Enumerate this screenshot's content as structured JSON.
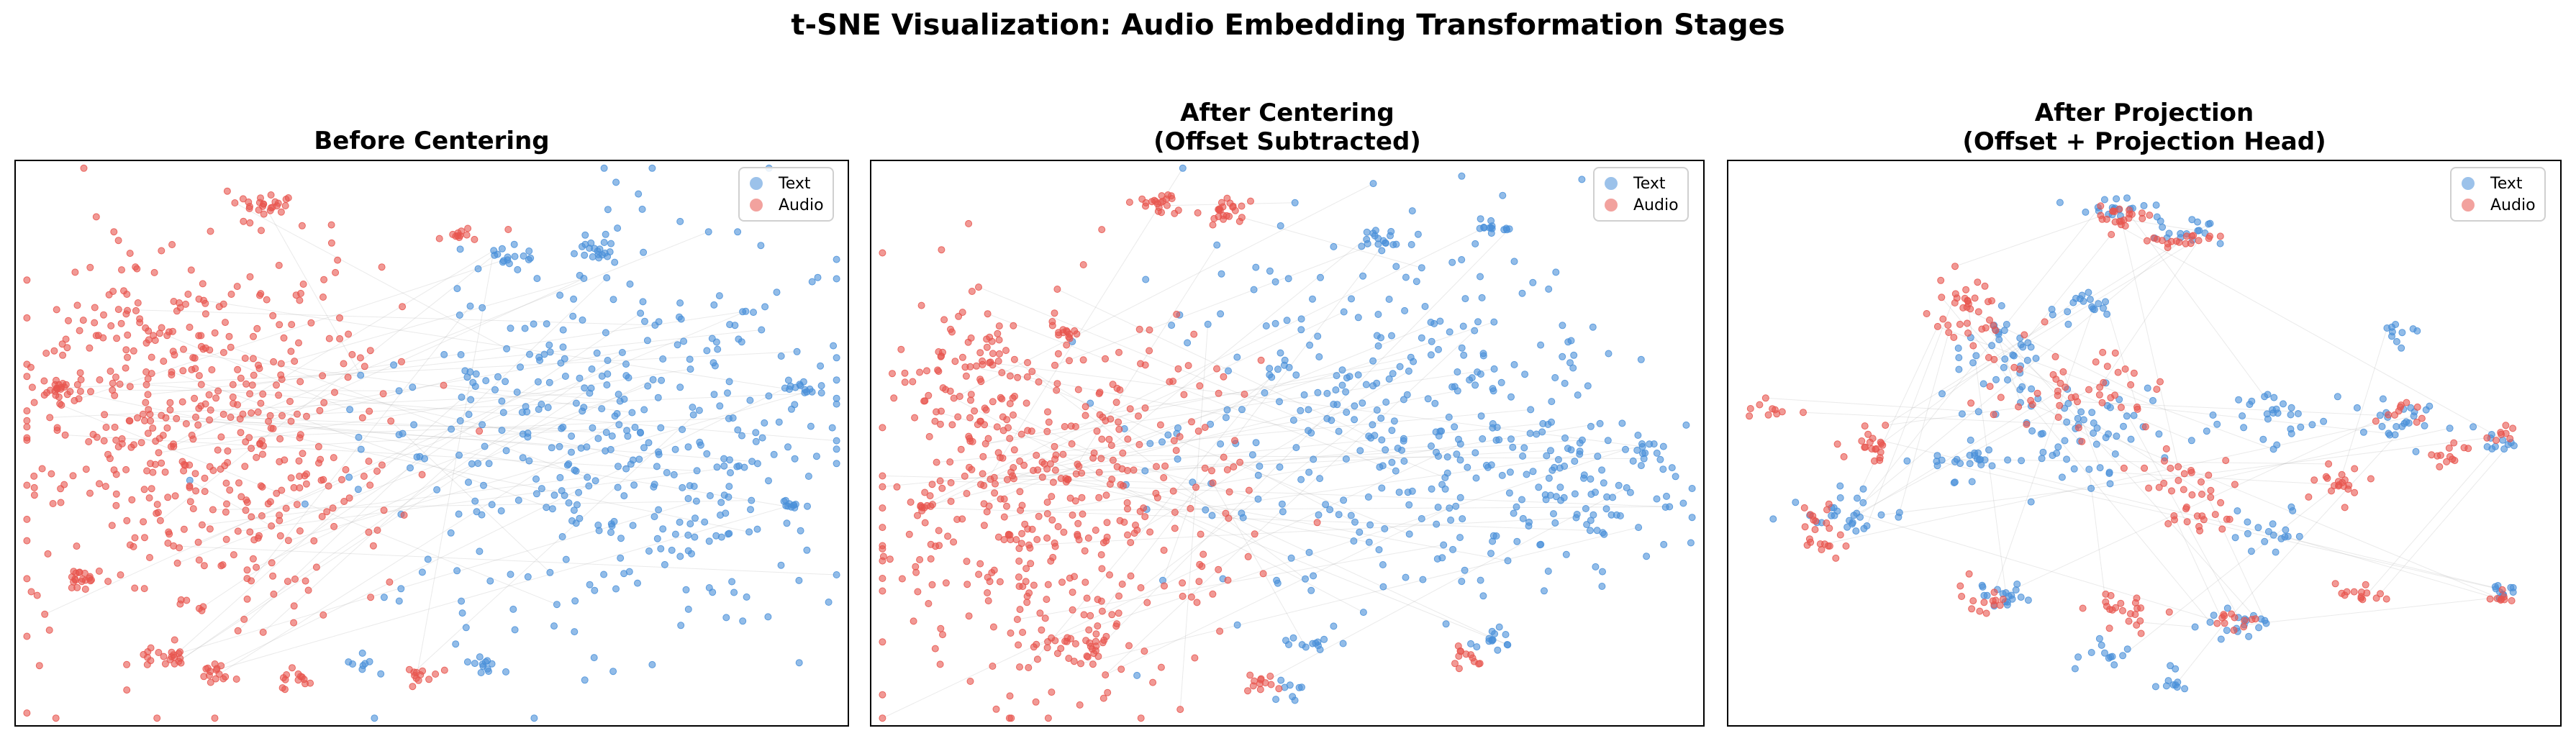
{
  "title": "t-SNE Visualization: Audio Embedding Transformation Stages",
  "colors": {
    "text": "#4a90d9",
    "audio": "#e8554e",
    "link": "#aaaaaa"
  },
  "legend": {
    "text_label": "Text",
    "audio_label": "Audio",
    "placement": "upper right"
  },
  "chart_data": [
    {
      "type": "scatter",
      "title": "Before Centering",
      "title_line2": "",
      "xlabel": "",
      "ylabel": "",
      "axes_ticks": false,
      "series": [
        {
          "name": "Text",
          "color": "#4a90d9",
          "clusters": [
            {
              "cx": 0.7,
              "cy": 0.5,
              "sx": 0.14,
              "sy": 0.18,
              "n": 330
            },
            {
              "cx": 0.83,
              "cy": 0.5,
              "sx": 0.07,
              "sy": 0.12,
              "n": 80
            },
            {
              "cx": 0.7,
              "cy": 0.16,
              "sx": 0.015,
              "sy": 0.012,
              "n": 20
            },
            {
              "cx": 0.6,
              "cy": 0.17,
              "sx": 0.015,
              "sy": 0.01,
              "n": 15
            },
            {
              "cx": 0.94,
              "cy": 0.4,
              "sx": 0.01,
              "sy": 0.01,
              "n": 12
            },
            {
              "cx": 0.93,
              "cy": 0.61,
              "sx": 0.008,
              "sy": 0.008,
              "n": 10
            },
            {
              "cx": 0.56,
              "cy": 0.89,
              "sx": 0.015,
              "sy": 0.01,
              "n": 12
            },
            {
              "cx": 0.42,
              "cy": 0.89,
              "sx": 0.015,
              "sy": 0.01,
              "n": 8
            }
          ]
        },
        {
          "name": "Audio",
          "color": "#e8554e",
          "clusters": [
            {
              "cx": 0.24,
              "cy": 0.5,
              "sx": 0.12,
              "sy": 0.18,
              "n": 420
            },
            {
              "cx": 0.15,
              "cy": 0.35,
              "sx": 0.07,
              "sy": 0.1,
              "n": 90
            },
            {
              "cx": 0.3,
              "cy": 0.08,
              "sx": 0.015,
              "sy": 0.012,
              "n": 25
            },
            {
              "cx": 0.055,
              "cy": 0.41,
              "sx": 0.01,
              "sy": 0.01,
              "n": 18
            },
            {
              "cx": 0.08,
              "cy": 0.74,
              "sx": 0.012,
              "sy": 0.01,
              "n": 18
            },
            {
              "cx": 0.18,
              "cy": 0.88,
              "sx": 0.015,
              "sy": 0.012,
              "n": 18
            },
            {
              "cx": 0.24,
              "cy": 0.91,
              "sx": 0.015,
              "sy": 0.01,
              "n": 15
            },
            {
              "cx": 0.33,
              "cy": 0.92,
              "sx": 0.01,
              "sy": 0.01,
              "n": 12
            },
            {
              "cx": 0.49,
              "cy": 0.91,
              "sx": 0.012,
              "sy": 0.01,
              "n": 12
            },
            {
              "cx": 0.54,
              "cy": 0.13,
              "sx": 0.01,
              "sy": 0.008,
              "n": 10
            }
          ]
        }
      ]
    },
    {
      "type": "scatter",
      "title": "After Centering",
      "title_line2": "(Offset Subtracted)",
      "xlabel": "",
      "ylabel": "",
      "axes_ticks": false,
      "series": [
        {
          "name": "Text",
          "color": "#4a90d9",
          "clusters": [
            {
              "cx": 0.63,
              "cy": 0.45,
              "sx": 0.14,
              "sy": 0.16,
              "n": 340
            },
            {
              "cx": 0.86,
              "cy": 0.57,
              "sx": 0.06,
              "sy": 0.09,
              "n": 80
            },
            {
              "cx": 0.61,
              "cy": 0.14,
              "sx": 0.02,
              "sy": 0.01,
              "n": 20
            },
            {
              "cx": 0.75,
              "cy": 0.12,
              "sx": 0.012,
              "sy": 0.008,
              "n": 12
            },
            {
              "cx": 0.93,
              "cy": 0.51,
              "sx": 0.01,
              "sy": 0.01,
              "n": 10
            },
            {
              "cx": 0.53,
              "cy": 0.85,
              "sx": 0.015,
              "sy": 0.01,
              "n": 12
            },
            {
              "cx": 0.74,
              "cy": 0.85,
              "sx": 0.015,
              "sy": 0.012,
              "n": 14
            },
            {
              "cx": 0.5,
              "cy": 0.93,
              "sx": 0.01,
              "sy": 0.01,
              "n": 8
            }
          ]
        },
        {
          "name": "Audio",
          "color": "#e8554e",
          "clusters": [
            {
              "cx": 0.22,
              "cy": 0.6,
              "sx": 0.12,
              "sy": 0.17,
              "n": 420
            },
            {
              "cx": 0.12,
              "cy": 0.38,
              "sx": 0.05,
              "sy": 0.07,
              "n": 70
            },
            {
              "cx": 0.35,
              "cy": 0.08,
              "sx": 0.015,
              "sy": 0.01,
              "n": 22
            },
            {
              "cx": 0.43,
              "cy": 0.09,
              "sx": 0.015,
              "sy": 0.012,
              "n": 22
            },
            {
              "cx": 0.06,
              "cy": 0.61,
              "sx": 0.008,
              "sy": 0.01,
              "n": 10
            },
            {
              "cx": 0.24,
              "cy": 0.86,
              "sx": 0.03,
              "sy": 0.02,
              "n": 30
            },
            {
              "cx": 0.47,
              "cy": 0.93,
              "sx": 0.015,
              "sy": 0.008,
              "n": 12
            },
            {
              "cx": 0.71,
              "cy": 0.88,
              "sx": 0.012,
              "sy": 0.01,
              "n": 12
            },
            {
              "cx": 0.24,
              "cy": 0.31,
              "sx": 0.01,
              "sy": 0.01,
              "n": 10
            }
          ]
        }
      ]
    },
    {
      "type": "scatter",
      "title": "After Projection",
      "title_line2": "(Offset + Projection Head)",
      "xlabel": "",
      "ylabel": "",
      "axes_ticks": false,
      "series": [
        {
          "name": "Text",
          "color": "#4a90d9",
          "clusters": [
            {
              "cx": 0.47,
              "cy": 0.08,
              "sx": 0.02,
              "sy": 0.012,
              "n": 18
            },
            {
              "cx": 0.56,
              "cy": 0.12,
              "sx": 0.025,
              "sy": 0.012,
              "n": 18
            },
            {
              "cx": 0.43,
              "cy": 0.26,
              "sx": 0.015,
              "sy": 0.015,
              "n": 18
            },
            {
              "cx": 0.32,
              "cy": 0.33,
              "sx": 0.04,
              "sy": 0.04,
              "n": 35
            },
            {
              "cx": 0.42,
              "cy": 0.48,
              "sx": 0.06,
              "sy": 0.05,
              "n": 60
            },
            {
              "cx": 0.14,
              "cy": 0.62,
              "sx": 0.025,
              "sy": 0.018,
              "n": 28
            },
            {
              "cx": 0.28,
              "cy": 0.53,
              "sx": 0.025,
              "sy": 0.02,
              "n": 25
            },
            {
              "cx": 0.65,
              "cy": 0.45,
              "sx": 0.04,
              "sy": 0.03,
              "n": 30
            },
            {
              "cx": 0.82,
              "cy": 0.46,
              "sx": 0.03,
              "sy": 0.025,
              "n": 25
            },
            {
              "cx": 0.8,
              "cy": 0.3,
              "sx": 0.015,
              "sy": 0.012,
              "n": 10
            },
            {
              "cx": 0.93,
              "cy": 0.5,
              "sx": 0.012,
              "sy": 0.01,
              "n": 10
            },
            {
              "cx": 0.93,
              "cy": 0.76,
              "sx": 0.012,
              "sy": 0.01,
              "n": 10
            },
            {
              "cx": 0.61,
              "cy": 0.82,
              "sx": 0.02,
              "sy": 0.015,
              "n": 18
            },
            {
              "cx": 0.33,
              "cy": 0.77,
              "sx": 0.018,
              "sy": 0.018,
              "n": 18
            },
            {
              "cx": 0.45,
              "cy": 0.87,
              "sx": 0.015,
              "sy": 0.012,
              "n": 12
            },
            {
              "cx": 0.54,
              "cy": 0.92,
              "sx": 0.012,
              "sy": 0.012,
              "n": 10
            },
            {
              "cx": 0.64,
              "cy": 0.66,
              "sx": 0.03,
              "sy": 0.02,
              "n": 18
            }
          ]
        },
        {
          "name": "Audio",
          "color": "#e8554e",
          "clusters": [
            {
              "cx": 0.48,
              "cy": 0.1,
              "sx": 0.02,
              "sy": 0.012,
              "n": 22
            },
            {
              "cx": 0.55,
              "cy": 0.14,
              "sx": 0.02,
              "sy": 0.01,
              "n": 18
            },
            {
              "cx": 0.29,
              "cy": 0.27,
              "sx": 0.02,
              "sy": 0.03,
              "n": 35
            },
            {
              "cx": 0.4,
              "cy": 0.4,
              "sx": 0.06,
              "sy": 0.05,
              "n": 50
            },
            {
              "cx": 0.11,
              "cy": 0.65,
              "sx": 0.015,
              "sy": 0.025,
              "n": 22
            },
            {
              "cx": 0.17,
              "cy": 0.5,
              "sx": 0.02,
              "sy": 0.015,
              "n": 20
            },
            {
              "cx": 0.55,
              "cy": 0.58,
              "sx": 0.03,
              "sy": 0.05,
              "n": 40
            },
            {
              "cx": 0.74,
              "cy": 0.58,
              "sx": 0.02,
              "sy": 0.02,
              "n": 20
            },
            {
              "cx": 0.76,
              "cy": 0.76,
              "sx": 0.015,
              "sy": 0.01,
              "n": 14
            },
            {
              "cx": 0.86,
              "cy": 0.52,
              "sx": 0.015,
              "sy": 0.012,
              "n": 12
            },
            {
              "cx": 0.48,
              "cy": 0.8,
              "sx": 0.03,
              "sy": 0.02,
              "n": 22
            },
            {
              "cx": 0.62,
              "cy": 0.82,
              "sx": 0.015,
              "sy": 0.012,
              "n": 12
            },
            {
              "cx": 0.3,
              "cy": 0.78,
              "sx": 0.015,
              "sy": 0.015,
              "n": 14
            },
            {
              "cx": 0.05,
              "cy": 0.44,
              "sx": 0.012,
              "sy": 0.01,
              "n": 10
            },
            {
              "cx": 0.93,
              "cy": 0.77,
              "sx": 0.01,
              "sy": 0.008,
              "n": 8
            },
            {
              "cx": 0.93,
              "cy": 0.48,
              "sx": 0.01,
              "sy": 0.008,
              "n": 8
            },
            {
              "cx": 0.81,
              "cy": 0.44,
              "sx": 0.015,
              "sy": 0.012,
              "n": 10
            }
          ]
        }
      ]
    }
  ]
}
